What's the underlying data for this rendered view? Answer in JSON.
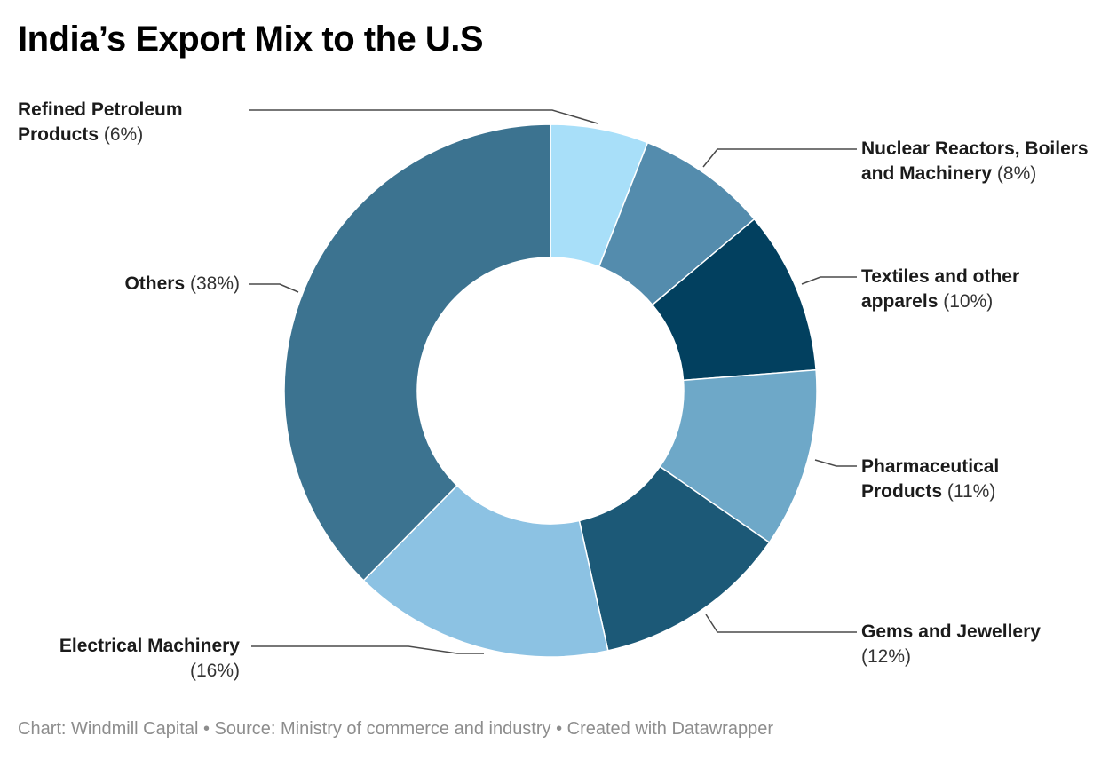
{
  "title": "India’s Export Mix to the U.S",
  "footer": "Chart: Windmill Capital • Source: Ministry of commerce and industry • Created with Datawrapper",
  "chart_data": {
    "type": "pie",
    "donut": true,
    "title": "India’s Export Mix to the U.S",
    "slices": [
      {
        "name": "Refined Petroleum Products",
        "value": 6,
        "label": "(6%)",
        "color": "#a8dff9"
      },
      {
        "name": "Nuclear Reactors, Boilers and Machinery",
        "value": 8,
        "label": "(8%)",
        "color": "#548cad"
      },
      {
        "name": "Textiles and other apparels",
        "value": 10,
        "label": "(10%)",
        "color": "#02405f"
      },
      {
        "name": "Pharmaceutical Products",
        "value": 11,
        "label": "(11%)",
        "color": "#6ea8c8"
      },
      {
        "name": "Gems and Jewellery",
        "value": 12,
        "label": "(12%)",
        "color": "#1c5977"
      },
      {
        "name": "Electrical Machinery",
        "value": 16,
        "label": "(16%)",
        "color": "#8cc2e3"
      },
      {
        "name": "Others",
        "value": 38,
        "label": "(38%)",
        "color": "#3c7390"
      }
    ]
  }
}
